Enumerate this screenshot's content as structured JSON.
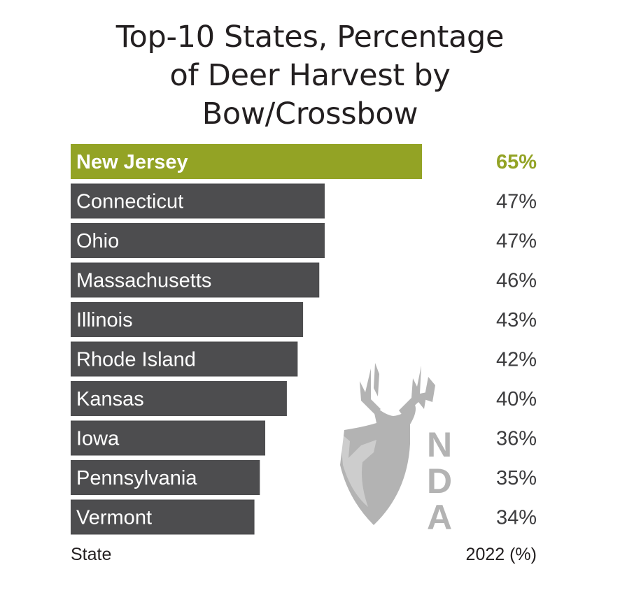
{
  "chart_data": {
    "type": "bar",
    "orientation": "horizontal",
    "title": "Top-10 States, Percentage of Deer Harvest by Bow/Crossbow",
    "title_lines": [
      "Top-10 States, Percentage",
      "of Deer Harvest by",
      "Bow/Crossbow"
    ],
    "categories": [
      "New Jersey",
      "Connecticut",
      "Ohio",
      "Massachusetts",
      "Illinois",
      "Rhode Island",
      "Kansas",
      "Iowa",
      "Pennsylvania",
      "Vermont"
    ],
    "values": [
      65,
      47,
      47,
      46,
      43,
      42,
      40,
      36,
      35,
      34
    ],
    "value_labels": [
      "65%",
      "47%",
      "47%",
      "46%",
      "43%",
      "42%",
      "40%",
      "36%",
      "35%",
      "34%"
    ],
    "xlabel": "2022 (%)",
    "ylabel": "State",
    "xlim": [
      0,
      65
    ],
    "highlight_index": 0,
    "colors": {
      "highlight": "#93a325",
      "bar": "#4d4d4f",
      "logo": "#b3b3b3"
    }
  },
  "logo": {
    "text": "NDA",
    "letters": [
      "N",
      "D",
      "A"
    ]
  }
}
